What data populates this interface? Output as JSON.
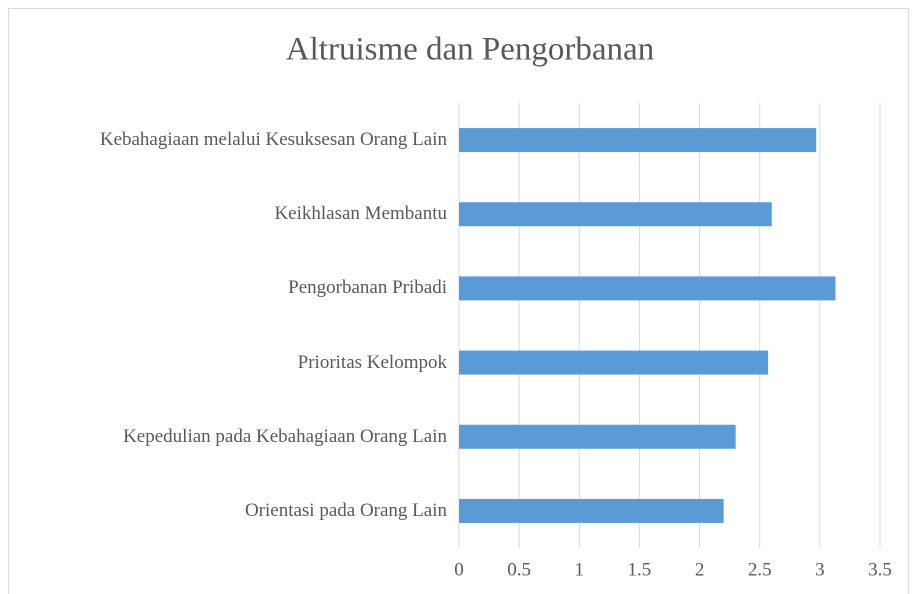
{
  "chart_data": {
    "type": "barh",
    "title": "Altruisme dan Pengorbanan",
    "categories": [
      "Kebahagiaan melalui Kesuksesan Orang Lain",
      "Keikhlasan Membantu",
      "Pengorbanan Pribadi",
      "Prioritas Kelompok",
      "Kepedulian pada Kebahagiaan Orang Lain",
      "Orientasi pada Orang Lain"
    ],
    "values": [
      2.97,
      2.6,
      3.13,
      2.57,
      2.3,
      2.2
    ],
    "color": "#5b9bd5",
    "xlim": [
      0,
      3.5
    ],
    "xticks": [
      0,
      0.5,
      1,
      1.5,
      2,
      2.5,
      3,
      3.5
    ],
    "grid": true
  }
}
